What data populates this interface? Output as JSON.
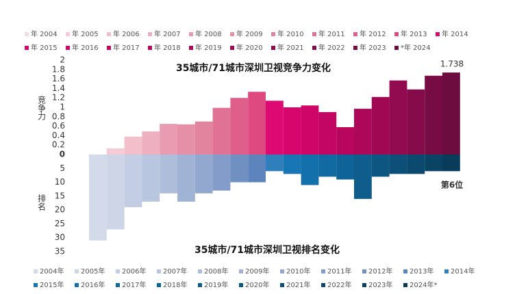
{
  "chart_data": [
    {
      "type": "bar",
      "title": "35城市/71城市深圳卫视竞争力变化",
      "y_label": "竞争力",
      "categories": [
        "年 2004",
        "年 2005",
        "年 2006",
        "年 2007",
        "年 2008",
        "年 2009",
        "年 2010",
        "年 2011",
        "年 2012",
        "年 2013",
        "年 2014",
        "年 2015",
        "年 2016",
        "年 2017",
        "年 2018",
        "年 2019",
        "年 2020",
        "年 2021",
        "年 2022",
        "年 2023",
        "*年 2024"
      ],
      "values": [
        0,
        0.13,
        0.38,
        0.49,
        0.65,
        0.64,
        0.7,
        0.99,
        1.2,
        1.33,
        1.14,
        1.0,
        1.04,
        0.9,
        0.58,
        0.97,
        1.22,
        1.57,
        1.38,
        1.67,
        1.738
      ],
      "colors": [
        "#f3dde3",
        "#f5ccd6",
        "#f2bfcb",
        "#eeb0c0",
        "#e99cb1",
        "#e690a8",
        "#e3849f",
        "#e07296",
        "#df5f8a",
        "#de4a80",
        "#dc0a72",
        "#d6066d",
        "#cf0668",
        "#c30563",
        "#b8065e",
        "#ad0759",
        "#a00853",
        "#920a4f",
        "#850b4a",
        "#770c45",
        "#6d0c3f"
      ],
      "ylim": [
        0,
        2
      ],
      "yticks": [
        0,
        0.2,
        0.4,
        0.6,
        0.8,
        1,
        1.2,
        1.4,
        1.6,
        1.8,
        2
      ],
      "y_inverted": false,
      "annotation": "1.738"
    },
    {
      "type": "bar",
      "title": "35城市/71城市深圳卫视排名变化",
      "y_label": "排名",
      "categories": [
        "2004年",
        "2005年",
        "2006年",
        "2007年",
        "2008年",
        "2009年",
        "2010年",
        "2011年",
        "2012年",
        "2013年",
        "2014年",
        "2015年",
        "2016年",
        "2017年",
        "2018年",
        "2019年",
        "2020年",
        "2021年",
        "2022年",
        "2023年",
        "2024年*"
      ],
      "values": [
        31,
        27,
        19,
        17,
        14,
        17,
        14,
        13,
        10,
        10,
        6,
        7,
        11,
        8,
        9,
        16,
        8,
        7,
        7,
        6,
        6
      ],
      "colors": [
        "#d3dae9",
        "#cdd5e7",
        "#c3cde3",
        "#b9c6df",
        "#aebdda",
        "#a1b3d5",
        "#93a8cf",
        "#839cc9",
        "#7090c2",
        "#5d84bc",
        "#2f7fbd",
        "#1976b4",
        "#1470ab",
        "#116aa1",
        "#0f6497",
        "#0e5d8c",
        "#0d5682",
        "#0c4f78",
        "#0b496e",
        "#0a4364",
        "#093c5a"
      ],
      "ylim": [
        0,
        35
      ],
      "yticks": [
        5,
        10,
        15,
        20,
        25,
        30,
        35
      ],
      "y_inverted": true,
      "annotation": "第6位"
    }
  ]
}
